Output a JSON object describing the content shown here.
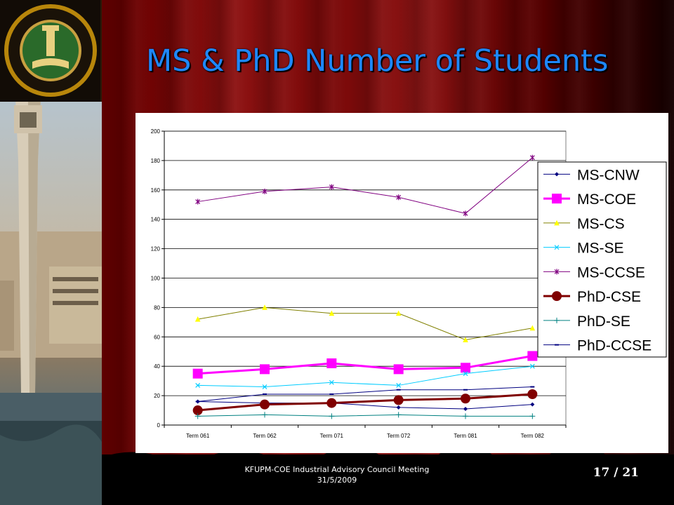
{
  "slide": {
    "title": "MS & PhD Number of Students",
    "footer_line1": "KFUPM-COE Industrial Advisory Council Meeting",
    "footer_line2": "31/5/2009",
    "page_number": "17 / 21"
  },
  "colors": {
    "title": "#1e88ff",
    "curtain": "#7a0808"
  },
  "chart_data": {
    "type": "line",
    "title": "",
    "xlabel": "",
    "ylabel": "",
    "categories": [
      "Term 061",
      "Term 062",
      "Term 071",
      "Term 072",
      "Term 081",
      "Term 082"
    ],
    "ylim": [
      0,
      200
    ],
    "yticks": [
      "0",
      "20",
      "40",
      "60",
      "80",
      "100",
      "120",
      "140",
      "160",
      "180",
      "200"
    ],
    "grid": "horizontal",
    "legend_position": "right",
    "series": [
      {
        "name": "MS-CNW",
        "values": [
          16,
          15,
          15,
          12,
          11,
          14
        ],
        "color": "#000080",
        "marker": "diamond",
        "width": 1
      },
      {
        "name": "MS-COE",
        "values": [
          35,
          38,
          42,
          38,
          39,
          47
        ],
        "color": "#ff00ff",
        "marker": "square",
        "width": 3
      },
      {
        "name": "MS-CS",
        "values": [
          72,
          80,
          76,
          76,
          58,
          66
        ],
        "color": "#808000",
        "marker": "triangle",
        "width": 1
      },
      {
        "name": "MS-SE",
        "values": [
          27,
          26,
          29,
          27,
          35,
          40
        ],
        "color": "#00ccff",
        "marker": "x",
        "width": 1
      },
      {
        "name": "MS-CCSE",
        "values": [
          152,
          159,
          162,
          155,
          144,
          182
        ],
        "color": "#800080",
        "marker": "star",
        "width": 1
      },
      {
        "name": "PhD-CSE",
        "values": [
          10,
          14,
          15,
          17,
          18,
          21
        ],
        "color": "#800000",
        "marker": "circle",
        "width": 3
      },
      {
        "name": "PhD-SE",
        "values": [
          6,
          7,
          6,
          7,
          6,
          6
        ],
        "color": "#008080",
        "marker": "plus",
        "width": 1
      },
      {
        "name": "PhD-CCSE",
        "values": [
          16,
          21,
          21,
          24,
          24,
          26
        ],
        "color": "#000080",
        "marker": "dash",
        "width": 1
      }
    ]
  }
}
